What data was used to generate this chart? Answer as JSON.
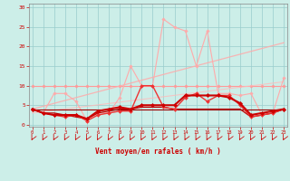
{
  "xlabel": "Vent moyen/en rafales ( km/h )",
  "bg_color": "#cceee8",
  "grid_color": "#99cccc",
  "x_ticks": [
    0,
    1,
    2,
    3,
    4,
    5,
    6,
    7,
    8,
    9,
    10,
    11,
    12,
    13,
    14,
    15,
    16,
    17,
    18,
    19,
    20,
    21,
    22,
    23
  ],
  "ylim": [
    -0.5,
    31
  ],
  "xlim": [
    -0.3,
    23.3
  ],
  "lines": [
    {
      "x": [
        0,
        1,
        2,
        3,
        4,
        5,
        6,
        7,
        8,
        9,
        10,
        11,
        12,
        13,
        14,
        15,
        16,
        17,
        18,
        19,
        20,
        21,
        22,
        23
      ],
      "y": [
        10,
        10,
        10,
        10,
        10,
        10,
        10,
        10,
        10,
        10,
        10,
        10,
        10,
        10,
        10,
        10,
        10,
        10,
        10,
        10,
        10,
        10,
        10,
        10
      ],
      "color": "#ff9999",
      "lw": 0.8,
      "marker": "D",
      "ms": 1.8,
      "alpha": 1.0,
      "zorder": 2
    },
    {
      "x": [
        0,
        23
      ],
      "y": [
        4,
        21
      ],
      "color": "#ffaaaa",
      "lw": 0.9,
      "marker": null,
      "ms": 0,
      "alpha": 0.85,
      "zorder": 2
    },
    {
      "x": [
        0,
        23
      ],
      "y": [
        3,
        11
      ],
      "color": "#ffbbbb",
      "lw": 0.8,
      "marker": null,
      "ms": 0,
      "alpha": 0.8,
      "zorder": 2
    },
    {
      "x": [
        0,
        1,
        2,
        3,
        4,
        5,
        6,
        7,
        8,
        9,
        10,
        11,
        12,
        13,
        14,
        15,
        16,
        17,
        18,
        19,
        20,
        21,
        22,
        23
      ],
      "y": [
        4,
        3,
        8,
        8,
        6,
        1,
        3,
        3,
        7,
        15,
        10,
        10,
        27,
        25,
        24,
        15,
        24,
        8,
        8,
        7.5,
        8,
        2.5,
        3,
        12
      ],
      "color": "#ffaaaa",
      "lw": 0.8,
      "marker": "D",
      "ms": 1.8,
      "alpha": 1.0,
      "zorder": 3
    },
    {
      "x": [
        0,
        1,
        2,
        3,
        4,
        5,
        6,
        7,
        8,
        9,
        10,
        11,
        12,
        13,
        14,
        15,
        16,
        17,
        18,
        19,
        20,
        21,
        22,
        23
      ],
      "y": [
        4,
        3,
        2.5,
        2,
        2.5,
        1,
        2.5,
        3,
        3.5,
        3.5,
        10,
        10,
        4.5,
        4,
        7,
        8,
        6,
        7.5,
        7.5,
        5,
        2,
        2.5,
        3,
        4
      ],
      "color": "#ee3333",
      "lw": 1.0,
      "marker": "D",
      "ms": 2.0,
      "alpha": 1.0,
      "zorder": 4
    },
    {
      "x": [
        0,
        1,
        2,
        3,
        4,
        5,
        6,
        7,
        8,
        9,
        10,
        11,
        12,
        13,
        14,
        15,
        16,
        17,
        18,
        19,
        20,
        21,
        22,
        23
      ],
      "y": [
        4,
        3,
        2.5,
        2.5,
        2.5,
        1.5,
        3.5,
        4,
        4.5,
        4,
        5,
        5,
        5,
        5,
        7.5,
        7.5,
        7.5,
        7.5,
        7,
        5.5,
        2.5,
        3,
        3.5,
        4
      ],
      "color": "#cc0000",
      "lw": 1.5,
      "marker": "D",
      "ms": 2.2,
      "alpha": 1.0,
      "zorder": 5
    },
    {
      "x": [
        0,
        1,
        2,
        3,
        4,
        5,
        6,
        7,
        8,
        9,
        10,
        11,
        12,
        13,
        14,
        15,
        16,
        17,
        18,
        19,
        20,
        21,
        22,
        23
      ],
      "y": [
        4,
        3,
        3,
        2.5,
        2,
        1.5,
        3,
        3.5,
        4,
        4,
        4.5,
        4.5,
        4.5,
        4,
        4,
        4,
        4,
        4,
        4,
        4,
        2,
        2.5,
        3,
        4
      ],
      "color": "#bb0000",
      "lw": 0.9,
      "marker": null,
      "ms": 0,
      "alpha": 1.0,
      "zorder": 3
    },
    {
      "x": [
        0,
        23
      ],
      "y": [
        4,
        4
      ],
      "color": "#990000",
      "lw": 0.8,
      "marker": null,
      "ms": 0,
      "alpha": 1.0,
      "zorder": 3
    }
  ],
  "yticks": [
    0,
    5,
    10,
    15,
    20,
    25,
    30
  ]
}
